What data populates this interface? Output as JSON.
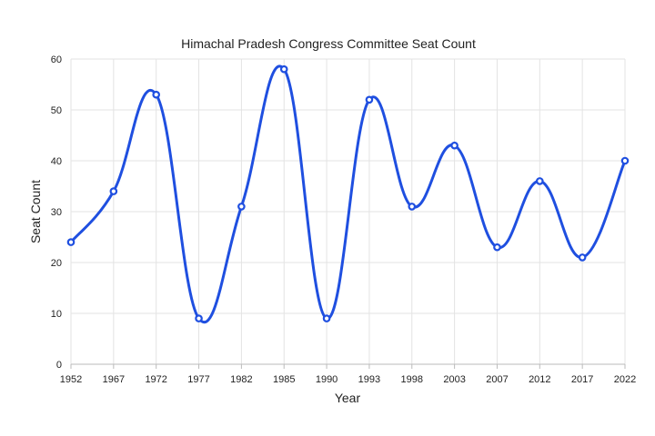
{
  "chart_data": {
    "type": "line",
    "title": "Himachal Pradesh Congress Committee Seat Count",
    "xlabel": "Year",
    "ylabel": "Seat Count",
    "categories": [
      "1952",
      "1967",
      "1972",
      "1977",
      "1982",
      "1985",
      "1990",
      "1993",
      "1998",
      "2003",
      "2007",
      "2012",
      "2017",
      "2022"
    ],
    "series": [
      {
        "values": [
          24,
          34,
          53,
          9,
          31,
          58,
          9,
          52,
          31,
          43,
          23,
          36,
          21,
          40
        ]
      }
    ],
    "ylim": [
      0,
      60
    ],
    "yticks": [
      0,
      10,
      20,
      30,
      40,
      50,
      60
    ],
    "grid": true,
    "line_color": "#1f4fe0",
    "smooth": true
  }
}
